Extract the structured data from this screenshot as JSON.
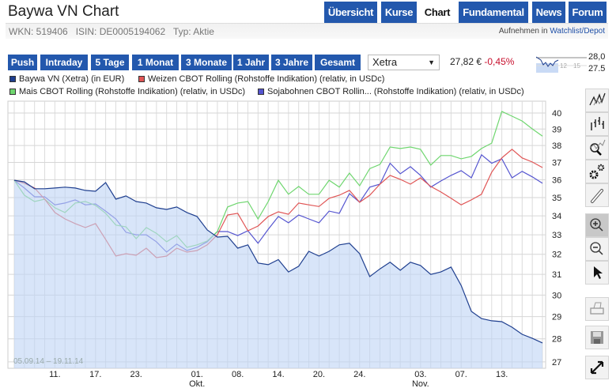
{
  "header": {
    "title": "Baywa VN Chart",
    "tabs": [
      {
        "label": "Übersicht",
        "active": false
      },
      {
        "label": "Kurse",
        "active": false
      },
      {
        "label": "Chart",
        "active": true
      },
      {
        "label": "Fundamental",
        "active": false
      },
      {
        "label": "News",
        "active": false
      },
      {
        "label": "Forum",
        "active": false
      }
    ]
  },
  "info": {
    "text": "WKN: 519406   ISIN: DE0005194062   Typ: Aktie",
    "watch_prefix": "Aufnehmen in ",
    "watch_link": "Watchlist/Depot"
  },
  "timeframes": [
    "Push",
    "Intraday",
    "5 Tage",
    "1 Monat",
    "3 Monate",
    "1 Jahr",
    "3 Jahre",
    "Gesamt"
  ],
  "exchange": {
    "selected": "Xetra"
  },
  "quote": {
    "price": "27,82 €",
    "change": "-0,45%"
  },
  "mini_chart": {
    "labels": [
      "28,0",
      "27.5"
    ],
    "x_ticks": [
      "12",
      "15"
    ]
  },
  "range_text": "05.09.14 – 19.11.14",
  "toolbar": [
    {
      "icon": "line-chart-icon"
    },
    {
      "icon": "ohlc-chart-icon"
    },
    {
      "icon": "indicator-search-icon"
    },
    {
      "icon": "settings-icon"
    },
    {
      "icon": "link-icon"
    },
    {
      "icon": "zoom-in-icon",
      "active": true
    },
    {
      "icon": "zoom-out-icon"
    },
    {
      "icon": "pointer-icon"
    },
    {
      "icon": "print-icon"
    },
    {
      "icon": "save-icon"
    },
    {
      "icon": "fullscreen-icon"
    }
  ],
  "chart_data": {
    "type": "line",
    "yscale": "log",
    "ylim": [
      26.8,
      40.6
    ],
    "grid": true,
    "legend": "top-left",
    "yticks": [
      27,
      28,
      29,
      30,
      31,
      32,
      33,
      34,
      35,
      36,
      37,
      38,
      39,
      40
    ],
    "x": [
      "05.09",
      "08.09",
      "09.09",
      "10.09",
      "11.09",
      "12.09",
      "15.09",
      "16.09",
      "17.09",
      "18.09",
      "19.09",
      "22.09",
      "23.09",
      "24.09",
      "25.09",
      "26.09",
      "29.09",
      "30.09",
      "01.10",
      "02.10",
      "06.10",
      "07.10",
      "08.10",
      "09.10",
      "10.10",
      "13.10",
      "14.10",
      "15.10",
      "16.10",
      "17.10",
      "20.10",
      "21.10",
      "22.10",
      "23.10",
      "24.10",
      "27.10",
      "28.10",
      "29.10",
      "30.10",
      "31.10",
      "03.11",
      "04.11",
      "05.11",
      "06.11",
      "07.11",
      "10.11",
      "11.11",
      "12.11",
      "13.11",
      "14.11",
      "17.11",
      "18.11",
      "19.11"
    ],
    "xticks": [
      {
        "x": "11.09",
        "label": "11."
      },
      {
        "x": "17.09",
        "label": "17."
      },
      {
        "x": "23.09",
        "label": "23."
      },
      {
        "x": "01.10",
        "label": "01.",
        "sub": "Okt."
      },
      {
        "x": "08.10",
        "label": "08."
      },
      {
        "x": "14.10",
        "label": "14."
      },
      {
        "x": "20.10",
        "label": "20."
      },
      {
        "x": "24.10",
        "label": "24."
      },
      {
        "x": "03.11",
        "label": "03.",
        "sub": "Nov."
      },
      {
        "x": "07.11",
        "label": "07."
      },
      {
        "x": "13.11",
        "label": "13."
      }
    ],
    "series": [
      {
        "name": "Baywa VN (Xetra) (in EUR)",
        "color": "#1f3f8f",
        "fill": true,
        "values": [
          35.97,
          35.88,
          35.49,
          35.49,
          35.53,
          35.58,
          35.53,
          35.4,
          35.35,
          35.84,
          34.91,
          35.09,
          34.78,
          34.7,
          34.44,
          34.35,
          34.48,
          34.18,
          33.97,
          33.25,
          32.88,
          32.92,
          32.31,
          32.48,
          31.56,
          31.48,
          31.73,
          31.12,
          31.4,
          32.15,
          31.91,
          32.15,
          32.48,
          32.56,
          32.03,
          30.89,
          31.27,
          31.6,
          31.2,
          31.6,
          31.44,
          31.0,
          31.12,
          31.36,
          30.46,
          29.24,
          28.91,
          28.81,
          28.77,
          28.52,
          28.2,
          28.02,
          27.82
        ]
      },
      {
        "name": "Weizen CBOT Rolling (Rohstoffe Indikation) (relativ, in USDc)",
        "color": "#e05555",
        "values": [
          35.97,
          35.8,
          35.53,
          34.91,
          34.18,
          33.84,
          33.59,
          33.38,
          33.59,
          32.76,
          31.91,
          32.03,
          31.95,
          32.31,
          31.83,
          31.91,
          32.31,
          32.11,
          32.19,
          32.48,
          33.0,
          34.05,
          34.14,
          33.21,
          33.46,
          33.97,
          34.22,
          34.09,
          34.7,
          34.6,
          34.51,
          34.96,
          35.13,
          35.4,
          34.74,
          35.13,
          35.75,
          36.25,
          36.02,
          35.75,
          36.11,
          35.62,
          35.31,
          34.96,
          34.6,
          34.87,
          35.18,
          36.43,
          37.26,
          37.77,
          37.26,
          37.02,
          36.7
        ]
      },
      {
        "name": "Mais CBOT Rolling (Rohstoffe Indikation) (relativ, in USDc)",
        "color": "#6fd66f",
        "values": [
          35.97,
          35.13,
          34.78,
          34.91,
          34.44,
          34.18,
          34.7,
          34.78,
          34.57,
          34.14,
          33.51,
          33.42,
          32.8,
          33.38,
          33.08,
          32.64,
          32.96,
          32.35,
          32.48,
          32.68,
          33.17,
          34.48,
          34.7,
          34.78,
          33.84,
          34.78,
          35.97,
          35.18,
          35.62,
          35.18,
          35.18,
          35.97,
          35.58,
          36.38,
          35.66,
          36.64,
          36.88,
          37.91,
          37.82,
          37.91,
          37.77,
          36.84,
          37.4,
          37.4,
          37.21,
          37.35,
          37.82,
          38.14,
          40.1,
          39.8,
          39.5,
          39.01,
          38.57
        ]
      },
      {
        "name": "Sojabohnen CBOT Rollin... (Rohstoffe Indikation) (relativ, in USDc)",
        "color": "#5555d0",
        "values": [
          35.97,
          35.53,
          35.04,
          35.04,
          34.6,
          34.7,
          34.87,
          34.6,
          34.65,
          34.26,
          33.84,
          33.13,
          33.0,
          33.0,
          32.64,
          32.11,
          32.52,
          32.19,
          32.35,
          32.64,
          33.17,
          33.17,
          32.96,
          33.21,
          32.56,
          33.29,
          33.97,
          33.63,
          34.05,
          33.84,
          33.63,
          34.26,
          34.14,
          35.22,
          34.74,
          35.58,
          35.75,
          36.95,
          36.34,
          36.75,
          36.25,
          35.58,
          35.93,
          36.25,
          36.52,
          36.11,
          37.45,
          36.95,
          37.21,
          36.11,
          36.48,
          36.16,
          35.8
        ]
      }
    ]
  }
}
